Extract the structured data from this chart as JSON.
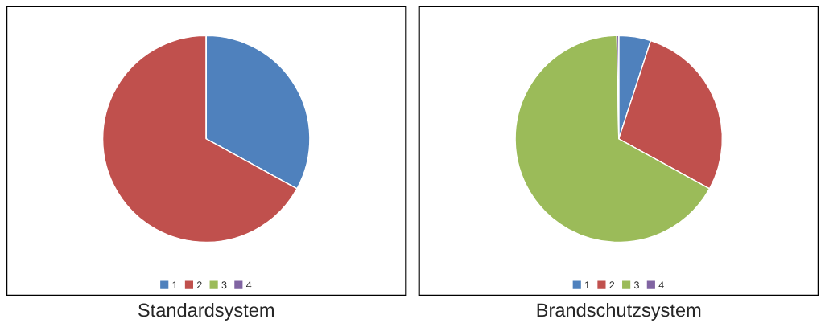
{
  "chart_data": [
    {
      "type": "pie",
      "title": "Standardsystem",
      "categories": [
        "1",
        "2",
        "3",
        "4"
      ],
      "values": [
        33,
        67,
        0,
        0
      ],
      "colors": [
        "#4f81bd",
        "#c0504d",
        "#9bbb59",
        "#8064a2"
      ],
      "legend": "bottom"
    },
    {
      "type": "pie",
      "title": "Brandschutzsystem",
      "categories": [
        "1",
        "2",
        "3",
        "4"
      ],
      "values": [
        5,
        28,
        66.7,
        0.3
      ],
      "colors": [
        "#4f81bd",
        "#c0504d",
        "#9bbb59",
        "#8064a2"
      ],
      "legend": "bottom"
    }
  ]
}
